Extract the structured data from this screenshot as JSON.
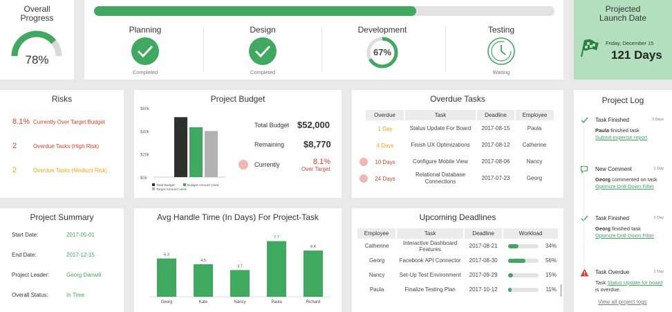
{
  "colors": {
    "green": "#3fa95f",
    "red": "#e0402f",
    "orange": "#f2a71b",
    "dark": "#2e302e",
    "gray": "#b3b3b3",
    "pink": "#f0b8b3",
    "lightgreen": "#b2dfbe"
  },
  "overall": {
    "title_line1": "Overall",
    "title_line2": "Progress",
    "value": "78%",
    "progress": 0.78
  },
  "phases": {
    "progress_bar": 0.7,
    "items": [
      {
        "name": "Planning",
        "status": "Completed",
        "icon": "check-icon"
      },
      {
        "name": "Design",
        "status": "Completed",
        "icon": "check-icon"
      },
      {
        "name": "Development",
        "status": "",
        "value": "67%",
        "progress": 0.67
      },
      {
        "name": "Testing",
        "status": "Waiting",
        "icon": "clock-icon"
      }
    ]
  },
  "launch": {
    "title_line1": "Projected",
    "title_line2": "Launch Date",
    "date": "Friday, December 15",
    "days": "121 Days",
    "icon": "checkered-flag-icon"
  },
  "risks": {
    "title": "Risks",
    "items": [
      {
        "value": "8.1%",
        "label": "Currently Over Target Budget",
        "color": "red"
      },
      {
        "value": "2",
        "label": "Overdue Tasks (High Risk)",
        "color": "red"
      },
      {
        "value": "2",
        "label": "Overdue Tasks (Medium Risk)",
        "color": "orange"
      }
    ]
  },
  "budget": {
    "title": "Project Budget",
    "y_ticks": [
      "$60k",
      "$40k",
      "$20k",
      "$0k"
    ],
    "legend": [
      "Total Budget",
      "Budget Amount Used",
      "Target Amount Used"
    ],
    "total_label": "Total Budget",
    "total_value": "$52,000",
    "remaining_label": "Remaining",
    "remaining_value": "$8,770",
    "currently_label": "Currently",
    "currently_value": "8.1%",
    "currently_note": "Over Target"
  },
  "overdue": {
    "title": "Overdue Tasks",
    "headers": [
      "Overdue",
      "Task",
      "Deadline",
      "Employee"
    ],
    "rows": [
      {
        "overdue": "1 Day",
        "task": "Status Update For Board",
        "deadline": "2017-08-15",
        "employee": "Paula",
        "level": "medium"
      },
      {
        "overdue": "4 Days",
        "task": "Finish UX Optimizations",
        "deadline": "2017-08-12",
        "employee": "Catherine",
        "level": "medium"
      },
      {
        "overdue": "10 Days",
        "task": "Configure Mobile View",
        "deadline": "2017-08-06",
        "employee": "Nancy",
        "level": "high"
      },
      {
        "overdue": "24 Days",
        "task": "Relational Database Connections",
        "deadline": "2017-07-23",
        "employee": "Georg",
        "level": "high"
      }
    ]
  },
  "log": {
    "title": "Project Log",
    "entries": [
      {
        "icon": "check-icon",
        "heading": "Task Finished",
        "time": "3 Days",
        "who": "Paula",
        "text": " finished task",
        "link": "Submit expense report",
        "after": ""
      },
      {
        "icon": "comment-icon",
        "heading": "New Comment",
        "time": "1 Day",
        "who": "Georg",
        "text": " commented on task",
        "link": "Optimize Drill-Down Filter",
        "after": ""
      },
      {
        "icon": "check-icon",
        "heading": "Task Finished",
        "time": "1 Day",
        "who": "Georg",
        "text": " finished task",
        "link": "Optimize Drill-Down Filter",
        "after": ""
      },
      {
        "icon": "warning-icon",
        "heading": "Task Overdue",
        "time": "1 Day",
        "who": "",
        "text": "Task ",
        "link": "Status Update for board",
        "after": " is overdue."
      }
    ],
    "view_all": "View all project logs"
  },
  "summary": {
    "title": "Project Summary",
    "rows": [
      {
        "label": "Start Date:",
        "value": "2017-05-01"
      },
      {
        "label": "End Date:",
        "value": "2017-12-15"
      },
      {
        "label": "Project Leader:",
        "value": "Georg Danwill"
      },
      {
        "label": "Overall Status:",
        "value": "In Time"
      }
    ]
  },
  "handle": {
    "title": "Avg Handle Time (In Days)  For Project-Task"
  },
  "deadlines": {
    "title": "Upcoming Deadlines",
    "headers": [
      "Employee",
      "Task",
      "Deadline",
      "Workload"
    ],
    "rows": [
      {
        "employee": "Catherine",
        "task": "Interactive Dashboard Features",
        "deadline": "2017-08-21",
        "workload": "34%",
        "pct": 0.34
      },
      {
        "employee": "Georg",
        "task": "Facebook API Connector",
        "deadline": "2017-08-30",
        "workload": "56%",
        "pct": 0.56
      },
      {
        "employee": "Nancy",
        "task": "Set-Up Test Environment",
        "deadline": "2017-09-29",
        "workload": "15%",
        "pct": 0.15
      },
      {
        "employee": "Paula",
        "task": "Finalize Testing Plan",
        "deadline": "2017-10-12",
        "workload": "11%",
        "pct": 0.11
      }
    ]
  },
  "chart_data": [
    {
      "type": "bar",
      "title": "Project Budget",
      "categories": [
        ""
      ],
      "series": [
        {
          "name": "Total Budget",
          "values": [
            52000
          ]
        },
        {
          "name": "Budget Amount Used",
          "values": [
            43230
          ]
        },
        {
          "name": "Target Amount Used",
          "values": [
            40000
          ]
        }
      ],
      "ylim": [
        0,
        60000
      ],
      "y_tick_labels": [
        "$60k",
        "$40k",
        "$20k",
        "$0k"
      ],
      "legend": "bottom-left"
    },
    {
      "type": "bar",
      "title": "Avg Handle Time (In Days)  For Project-Task",
      "categories": [
        "Georg",
        "Kate",
        "Nancy",
        "Paula",
        "Richard"
      ],
      "values": [
        5.3,
        4.5,
        3.7,
        7.7,
        6.4
      ],
      "value_labels": [
        "5.3",
        "4.5",
        "3.7",
        "7.7",
        "6.4"
      ],
      "ylim": [
        0,
        9
      ]
    }
  ]
}
